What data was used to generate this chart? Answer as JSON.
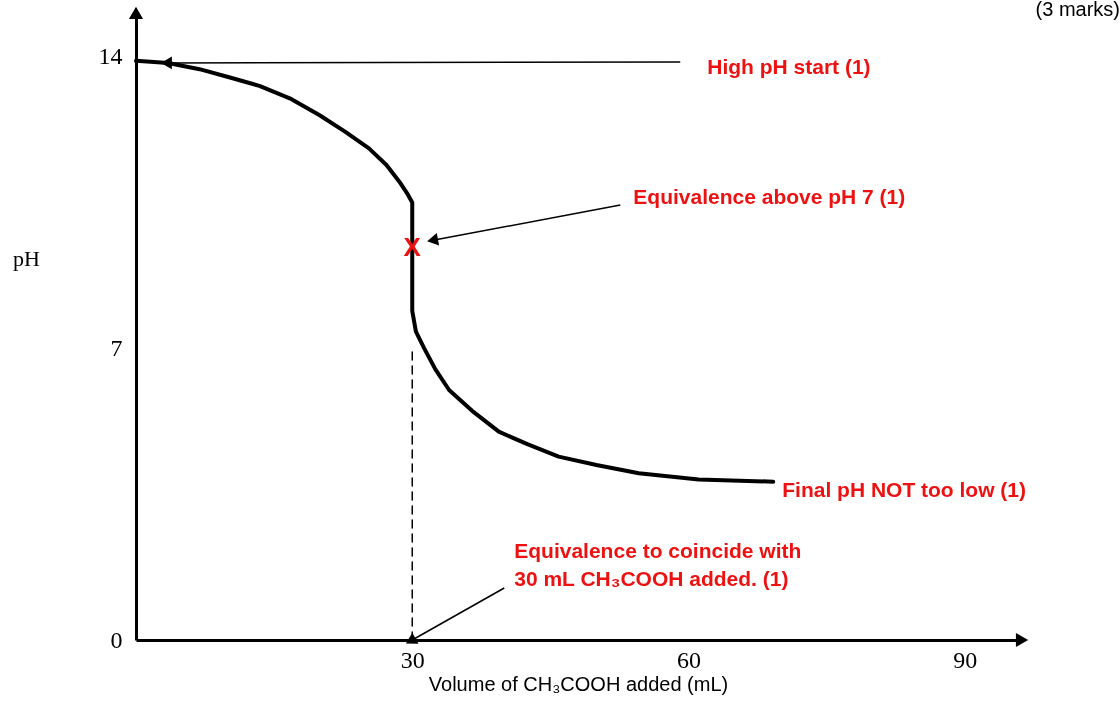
{
  "chart_data": {
    "type": "line",
    "xlabel": "Volume of CH₃COOH added (mL)",
    "ylabel": "pH",
    "xlim": [
      0,
      96
    ],
    "ylim": [
      0,
      15
    ],
    "xticks": [
      30,
      60,
      90
    ],
    "yticks": [
      0,
      7,
      14
    ],
    "series": [
      {
        "color": "#000000",
        "line_style": "solid",
        "x": [
          0,
          3.5,
          6.9,
          10.2,
          13.4,
          16.7,
          19.9,
          22.7,
          25.3,
          27.2,
          28.6,
          29.5,
          30,
          30,
          30.4,
          31.3,
          32.5,
          34,
          36.5,
          39.4,
          42.5,
          45.9,
          50,
          54.6,
          61.1,
          69.2
        ],
        "values": [
          13.9,
          13.85,
          13.7,
          13.5,
          13.3,
          13.0,
          12.6,
          12.2,
          11.8,
          11.4,
          11.0,
          10.7,
          10.5,
          7.9,
          7.4,
          7.0,
          6.5,
          6.0,
          5.5,
          5.0,
          4.7,
          4.4,
          4.2,
          4.0,
          3.85,
          3.8
        ]
      },
      {
        "color": "#000000",
        "line_style": "dashed",
        "x": [
          30,
          30
        ],
        "values": [
          0,
          7
        ]
      }
    ],
    "annotations": [
      {
        "text": "High pH start (1)",
        "x": 3.5,
        "y": 13.85
      },
      {
        "text": "Equivalence above pH 7 (1)",
        "x": 32.4,
        "y": 9.6
      },
      {
        "text": "Final pH NOT too low (1)",
        "x": 69.2,
        "y": 3.8
      },
      {
        "text": "Equivalence to coincide with\n30 mL CH₃COOH added. (1)",
        "x": 30,
        "y": 0
      },
      {
        "text": "X",
        "x": 30,
        "y": 9.4
      },
      "(3 marks)"
    ]
  }
}
